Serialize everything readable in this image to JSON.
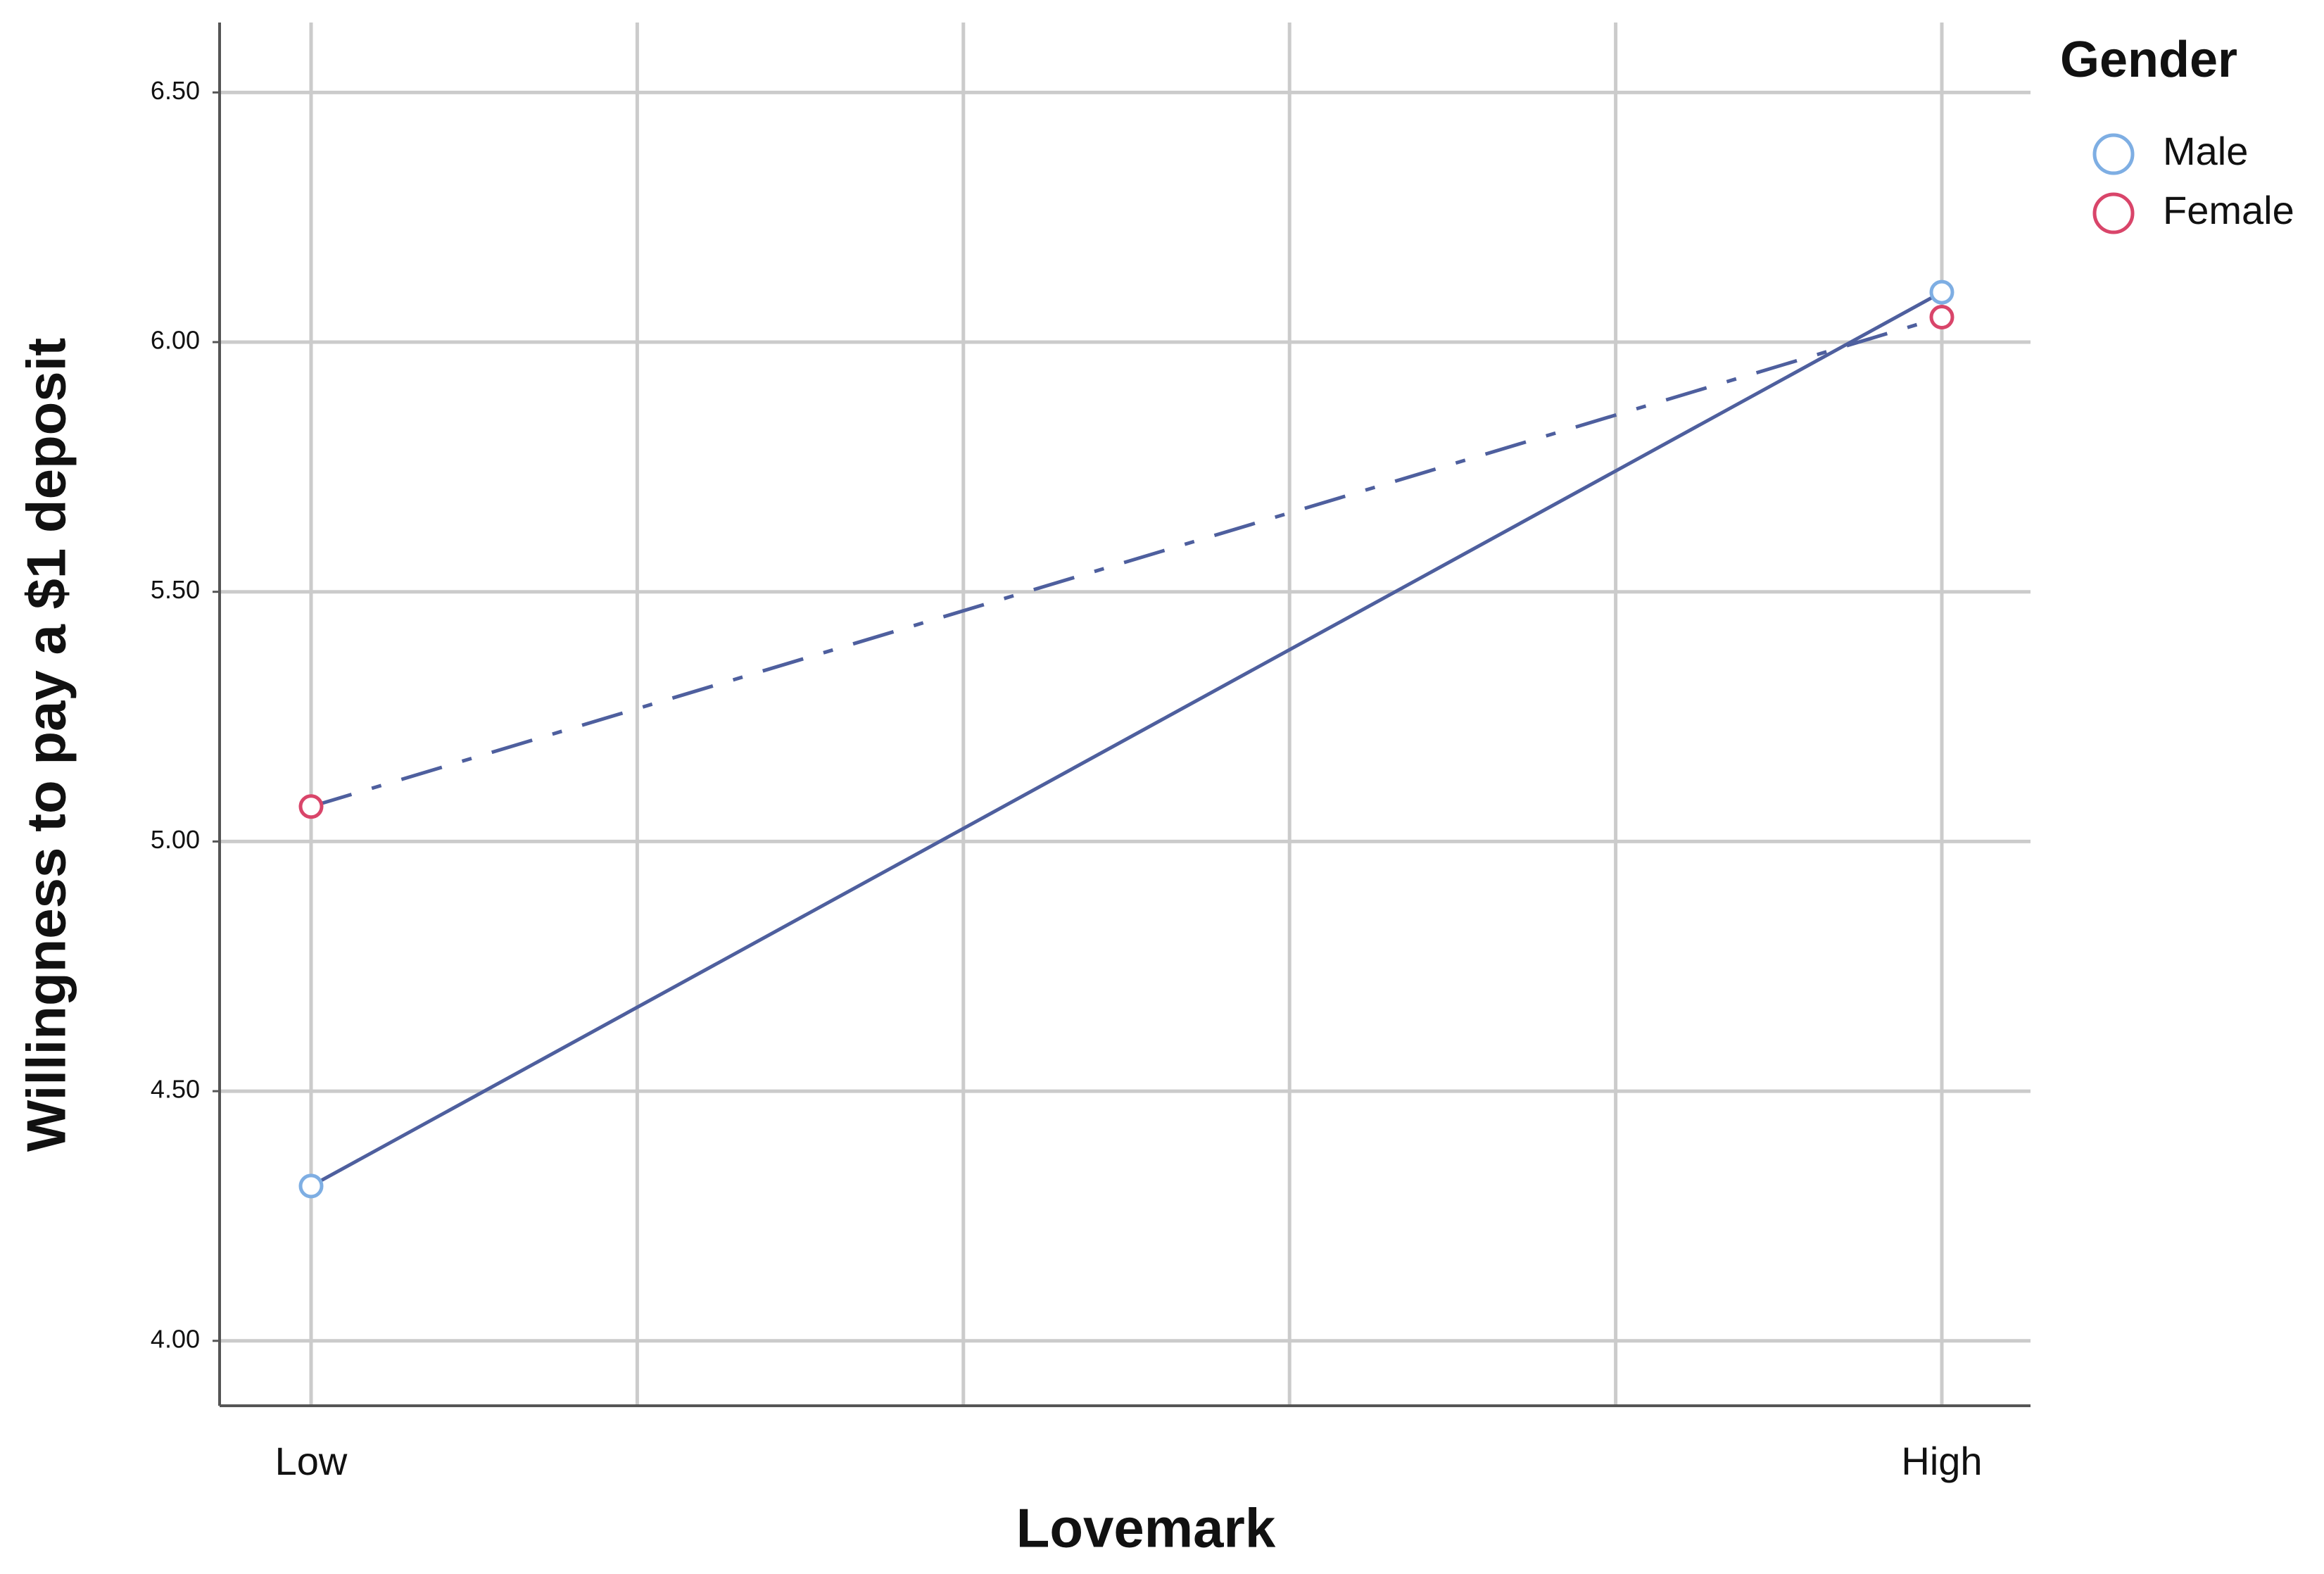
{
  "chart_data": {
    "type": "line",
    "x_label": "Lovemark",
    "y_label": "Willingness to pay a $1 deposit",
    "categories": [
      "Low",
      "High"
    ],
    "series": [
      {
        "name": "Male",
        "color": "#7eaee3",
        "line_style": "solid",
        "values": [
          4.31,
          6.1
        ]
      },
      {
        "name": "Female",
        "color": "#d9456a",
        "line_style": "dashdot",
        "values": [
          5.07,
          6.05
        ]
      }
    ],
    "line_color": "#4e5f9e",
    "ylim": [
      3.87,
      6.64
    ],
    "yticks": [
      {
        "value": 4,
        "label": "4.00"
      },
      {
        "value": 4.5,
        "label": "4.50"
      },
      {
        "value": 5,
        "label": "5.00"
      },
      {
        "value": 5.5,
        "label": "5.50"
      },
      {
        "value": 6,
        "label": "6.00"
      },
      {
        "value": 6.5,
        "label": "6.50"
      }
    ],
    "grid": true,
    "legend_title": "Gender",
    "legend_position": "top-right"
  }
}
